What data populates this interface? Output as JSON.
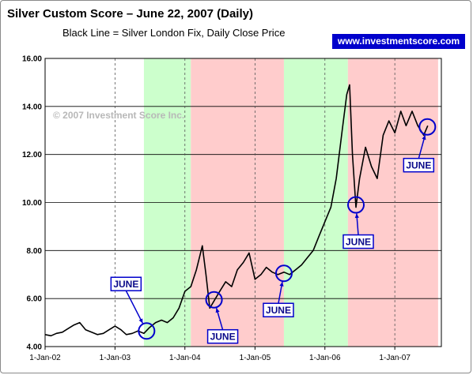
{
  "chart_data": {
    "type": "line",
    "title": "Silver Custom Score – June 22, 2007 (Daily)",
    "subtitle": "Black Line = Silver London Fix, Daily Close Price",
    "brand": "www.investmentscore.com",
    "copyright": "© 2007 Investment Score Inc.",
    "ylim": [
      4,
      16
    ],
    "yticks": [
      "4.00",
      "6.00",
      "8.00",
      "10.00",
      "12.00",
      "14.00",
      "16.00"
    ],
    "xlim": [
      "2002-01-01",
      "2007-09-01"
    ],
    "xticks": [
      {
        "date": "2002-01-01",
        "label": "1-Jan-02"
      },
      {
        "date": "2003-01-01",
        "label": "1-Jan-03"
      },
      {
        "date": "2004-01-01",
        "label": "1-Jan-04"
      },
      {
        "date": "2005-01-01",
        "label": "1-Jan-05"
      },
      {
        "date": "2006-01-01",
        "label": "1-Jan-06"
      },
      {
        "date": "2007-01-01",
        "label": "1-Jan-07"
      }
    ],
    "grid": {
      "horizontal": true,
      "vertical": "dashed"
    },
    "colors": {
      "bullish": "#ccffcc",
      "bearish": "#ffcccc",
      "line": "#000000",
      "callout": "#0000cc",
      "plot_bg": "#ffffff"
    },
    "zones": [
      {
        "start": "2003-06-01",
        "end": "2004-02-01",
        "signal": "bullish"
      },
      {
        "start": "2004-02-01",
        "end": "2005-06-01",
        "signal": "bearish"
      },
      {
        "start": "2005-06-01",
        "end": "2006-05-01",
        "signal": "bullish"
      },
      {
        "start": "2006-05-01",
        "end": "2007-08-15",
        "signal": "bearish"
      }
    ],
    "series": [
      {
        "values": [
          [
            "2002-01-01",
            4.5
          ],
          [
            "2002-02-01",
            4.45
          ],
          [
            "2002-03-01",
            4.55
          ],
          [
            "2002-04-01",
            4.6
          ],
          [
            "2002-05-01",
            4.75
          ],
          [
            "2002-06-01",
            4.9
          ],
          [
            "2002-07-01",
            5.0
          ],
          [
            "2002-08-01",
            4.7
          ],
          [
            "2002-09-01",
            4.6
          ],
          [
            "2002-10-01",
            4.5
          ],
          [
            "2002-11-01",
            4.55
          ],
          [
            "2002-12-01",
            4.7
          ],
          [
            "2003-01-01",
            4.85
          ],
          [
            "2003-02-01",
            4.7
          ],
          [
            "2003-03-01",
            4.5
          ],
          [
            "2003-04-01",
            4.55
          ],
          [
            "2003-05-01",
            4.65
          ],
          [
            "2003-06-01",
            4.55
          ],
          [
            "2003-07-01",
            4.8
          ],
          [
            "2003-08-01",
            5.0
          ],
          [
            "2003-09-01",
            5.1
          ],
          [
            "2003-10-01",
            5.0
          ],
          [
            "2003-11-01",
            5.2
          ],
          [
            "2003-12-01",
            5.6
          ],
          [
            "2004-01-01",
            6.3
          ],
          [
            "2004-02-01",
            6.5
          ],
          [
            "2004-03-01",
            7.2
          ],
          [
            "2004-04-01",
            8.2
          ],
          [
            "2004-04-20",
            7.0
          ],
          [
            "2004-05-10",
            5.6
          ],
          [
            "2004-06-01",
            5.9
          ],
          [
            "2004-07-01",
            6.3
          ],
          [
            "2004-08-01",
            6.7
          ],
          [
            "2004-09-01",
            6.5
          ],
          [
            "2004-10-01",
            7.2
          ],
          [
            "2004-11-01",
            7.5
          ],
          [
            "2004-12-01",
            7.9
          ],
          [
            "2005-01-01",
            6.8
          ],
          [
            "2005-02-01",
            7.0
          ],
          [
            "2005-03-01",
            7.3
          ],
          [
            "2005-04-01",
            7.1
          ],
          [
            "2005-05-01",
            7.0
          ],
          [
            "2005-06-01",
            7.1
          ],
          [
            "2005-07-01",
            7.0
          ],
          [
            "2005-08-01",
            7.2
          ],
          [
            "2005-09-01",
            7.4
          ],
          [
            "2005-10-01",
            7.7
          ],
          [
            "2005-11-01",
            8.0
          ],
          [
            "2005-12-01",
            8.6
          ],
          [
            "2006-01-01",
            9.2
          ],
          [
            "2006-02-01",
            9.8
          ],
          [
            "2006-03-01",
            11.0
          ],
          [
            "2006-04-01",
            13.0
          ],
          [
            "2006-04-25",
            14.5
          ],
          [
            "2006-05-10",
            14.9
          ],
          [
            "2006-05-25",
            12.0
          ],
          [
            "2006-06-12",
            9.8
          ],
          [
            "2006-07-01",
            11.0
          ],
          [
            "2006-08-01",
            12.3
          ],
          [
            "2006-09-01",
            11.5
          ],
          [
            "2006-10-01",
            11.0
          ],
          [
            "2006-11-01",
            12.8
          ],
          [
            "2006-12-01",
            13.4
          ],
          [
            "2007-01-01",
            12.9
          ],
          [
            "2007-02-01",
            13.8
          ],
          [
            "2007-03-01",
            13.2
          ],
          [
            "2007-04-01",
            13.8
          ],
          [
            "2007-05-01",
            13.2
          ],
          [
            "2007-06-01",
            12.8
          ],
          [
            "2007-06-22",
            13.2
          ]
        ]
      }
    ],
    "annotations": [
      {
        "label": "JUNE",
        "circle_at": [
          "2003-06-15",
          4.65
        ]
      },
      {
        "label": "JUNE",
        "circle_at": [
          "2004-06-01",
          5.95
        ]
      },
      {
        "label": "JUNE",
        "circle_at": [
          "2005-06-01",
          7.05
        ]
      },
      {
        "label": "JUNE",
        "circle_at": [
          "2006-06-12",
          9.9
        ]
      },
      {
        "label": "JUNE",
        "circle_at": [
          "2007-06-20",
          13.15
        ]
      }
    ]
  }
}
